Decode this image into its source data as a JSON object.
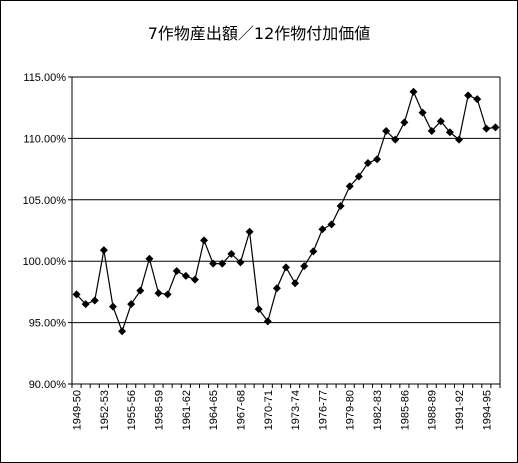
{
  "chart_data": {
    "type": "line",
    "title": "7作物産出額／12作物付加価値",
    "xlabel": "",
    "ylabel": "",
    "ylim": [
      90,
      115
    ],
    "y_ticks": [
      "90.00%",
      "95.00%",
      "100.00%",
      "105.00%",
      "110.00%",
      "115.00%"
    ],
    "y_tick_values": [
      90,
      95,
      100,
      105,
      110,
      115
    ],
    "grid": "horizontal",
    "marker": "diamond",
    "line_color": "#000000",
    "categories": [
      "1949-50",
      "1950-51",
      "1951-52",
      "1952-53",
      "1953-54",
      "1954-55",
      "1955-56",
      "1956-57",
      "1957-58",
      "1958-59",
      "1959-60",
      "1960-61",
      "1961-62",
      "1962-63",
      "1963-64",
      "1964-65",
      "1965-66",
      "1966-67",
      "1967-68",
      "1968-69",
      "1969-70",
      "1970-71",
      "1971-72",
      "1972-73",
      "1973-74",
      "1974-75",
      "1975-76",
      "1976-77",
      "1977-78",
      "1978-79",
      "1979-80",
      "1980-81",
      "1981-82",
      "1982-83",
      "1983-84",
      "1984-85",
      "1985-86",
      "1986-87",
      "1987-88",
      "1988-89",
      "1989-90",
      "1990-91",
      "1991-92",
      "1992-93",
      "1993-94",
      "1994-95",
      "1995-96"
    ],
    "x_tick_labels": [
      "1949-50",
      "1952-53",
      "1955-56",
      "1958-59",
      "1961-62",
      "1964-65",
      "1967-68",
      "1970-71",
      "1973-74",
      "1976-77",
      "1979-80",
      "1982-83",
      "1985-86",
      "1988-89",
      "1991-92",
      "1994-95"
    ],
    "x_tick_indices": [
      0,
      3,
      6,
      9,
      12,
      15,
      18,
      21,
      24,
      27,
      30,
      33,
      36,
      39,
      42,
      45
    ],
    "values": [
      97.3,
      96.5,
      96.8,
      100.9,
      96.3,
      94.3,
      96.5,
      97.6,
      100.2,
      97.4,
      97.3,
      99.2,
      98.8,
      98.5,
      101.7,
      99.8,
      99.8,
      100.6,
      99.9,
      102.4,
      96.1,
      95.1,
      97.8,
      99.5,
      98.2,
      99.6,
      100.8,
      102.6,
      103.0,
      104.5,
      106.1,
      106.9,
      108.0,
      108.3,
      110.6,
      109.9,
      111.3,
      113.8,
      112.1,
      110.6,
      111.4,
      110.5,
      109.9,
      113.5,
      113.2,
      110.8,
      110.9
    ]
  }
}
